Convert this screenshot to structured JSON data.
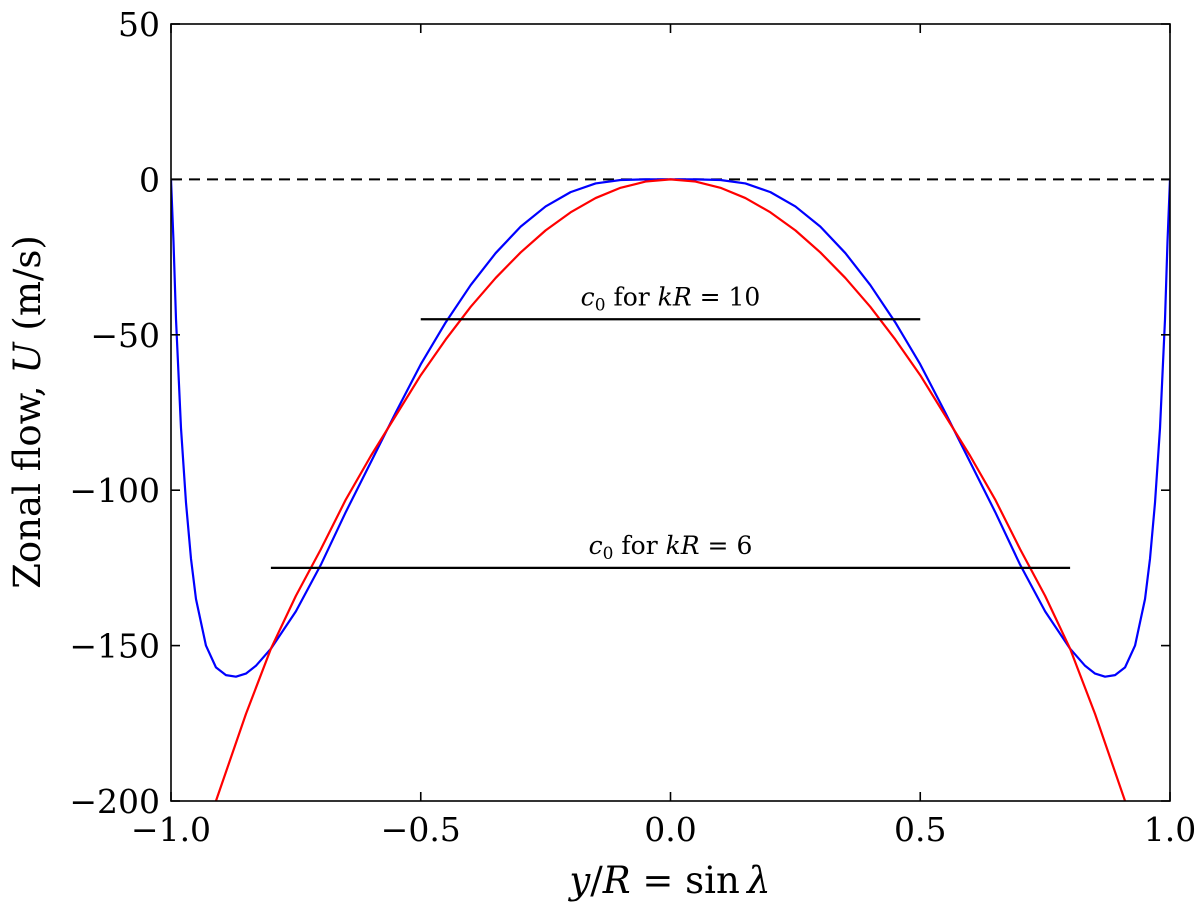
{
  "chart_data": {
    "type": "line",
    "xlabel": {
      "a": "y",
      "b": "/",
      "c": "R",
      "d": " = sin ",
      "e": "λ"
    },
    "ylabel": {
      "a": "Zonal flow, ",
      "b": "U",
      "c": " (m/s)"
    },
    "xlim": [
      -1.0,
      1.0
    ],
    "ylim": [
      -200,
      50
    ],
    "xticks": [
      -1.0,
      -0.5,
      0.0,
      0.5,
      1.0
    ],
    "xtick_labels": [
      "−1.0",
      "−0.5",
      "0.0",
      "0.5",
      "1.0"
    ],
    "yticks": [
      50,
      0,
      -50,
      -100,
      -150,
      -200
    ],
    "ytick_labels": [
      "50",
      "0",
      "−50",
      "−100",
      "−150",
      "−200"
    ],
    "grid": false,
    "series": [
      {
        "color": "#0000ff",
        "x": [
          -1.0,
          -0.995,
          -0.99,
          -0.98,
          -0.97,
          -0.96,
          -0.95,
          -0.93,
          -0.91,
          -0.89,
          -0.87,
          -0.85,
          -0.83,
          -0.8,
          -0.75,
          -0.7,
          -0.65,
          -0.6,
          -0.55,
          -0.5,
          -0.45,
          -0.4,
          -0.35,
          -0.3,
          -0.25,
          -0.2,
          -0.15,
          -0.1,
          -0.05,
          0.0,
          0.05,
          0.1,
          0.15,
          0.2,
          0.25,
          0.3,
          0.35,
          0.4,
          0.45,
          0.5,
          0.55,
          0.6,
          0.65,
          0.7,
          0.75,
          0.8,
          0.83,
          0.85,
          0.87,
          0.89,
          0.91,
          0.93,
          0.95,
          0.96,
          0.97,
          0.98,
          0.99,
          0.995,
          1.0
        ],
        "y": [
          0,
          -20,
          -45,
          -80,
          -104,
          -122,
          -135,
          -150,
          -157,
          -159.5,
          -160,
          -159,
          -156.5,
          -151,
          -139,
          -124,
          -107,
          -91,
          -75,
          -59.5,
          -46,
          -34,
          -23.7,
          -15.2,
          -8.7,
          -4.1,
          -1.3,
          -0.2,
          0,
          0,
          0,
          -0.2,
          -1.3,
          -4.1,
          -8.7,
          -15.2,
          -23.7,
          -34,
          -46,
          -59.5,
          -75,
          -91,
          -107,
          -124,
          -139,
          -151,
          -156.5,
          -159,
          -160,
          -159.5,
          -157,
          -150,
          -135,
          -122,
          -104,
          -80,
          -45,
          -20,
          0
        ]
      },
      {
        "color": "#ff0000",
        "x": [
          -0.91,
          -0.85,
          -0.8,
          -0.75,
          -0.7,
          -0.65,
          -0.6,
          -0.55,
          -0.5,
          -0.45,
          -0.4,
          -0.35,
          -0.3,
          -0.25,
          -0.2,
          -0.15,
          -0.1,
          -0.05,
          0.0,
          0.05,
          0.1,
          0.15,
          0.2,
          0.25,
          0.3,
          0.35,
          0.4,
          0.45,
          0.5,
          0.55,
          0.6,
          0.65,
          0.7,
          0.75,
          0.8,
          0.85,
          0.91
        ],
        "y": [
          -200,
          -172,
          -151,
          -134,
          -119,
          -103,
          -89,
          -76,
          -63,
          -51.5,
          -41,
          -31.7,
          -23.5,
          -16.4,
          -10.6,
          -6,
          -2.7,
          -0.7,
          0,
          -0.7,
          -2.7,
          -6,
          -10.6,
          -16.4,
          -23.5,
          -31.7,
          -41,
          -51.5,
          -63,
          -76,
          -89,
          -103,
          -119,
          -134,
          -151,
          -172,
          -200
        ]
      }
    ],
    "reference_line": {
      "y": 0,
      "style": "dashed",
      "color": "#000000"
    },
    "annotations": [
      {
        "label": {
          "c": "c",
          "sub": "0",
          "mid": " for ",
          "k": "kR",
          "eq": " = 10"
        },
        "y": -45,
        "x_start": -0.5,
        "x_end": 0.5
      },
      {
        "label": {
          "c": "c",
          "sub": "0",
          "mid": " for ",
          "k": "kR",
          "eq": " = 6"
        },
        "y": -125,
        "x_start": -0.8,
        "x_end": 0.8
      }
    ]
  }
}
